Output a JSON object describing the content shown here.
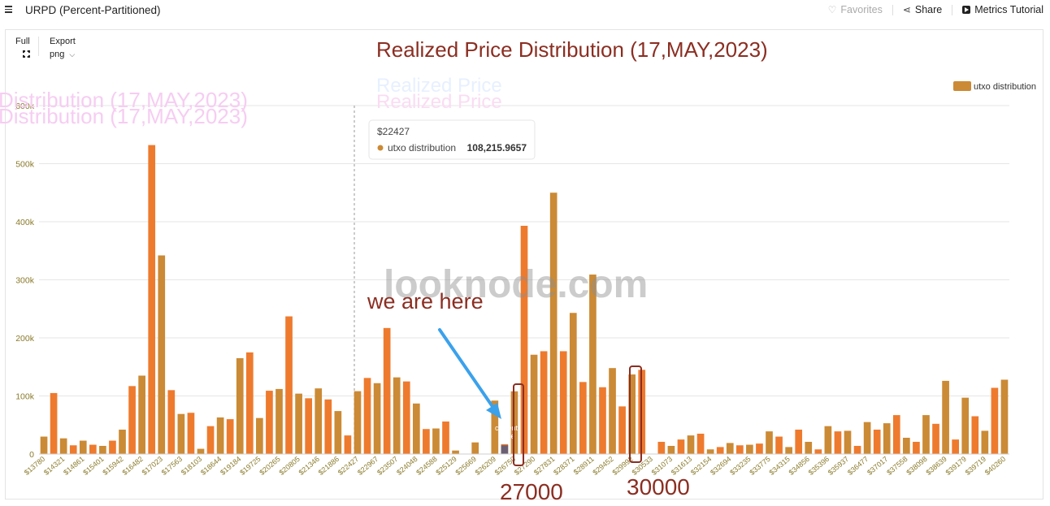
{
  "header": {
    "title": "URPD (Percent-Partitioned)",
    "favorites": "Favorites",
    "share": "Share",
    "tutorial": "Metrics Tutorial"
  },
  "toolbar": {
    "full_label": "Full",
    "export_label": "Export",
    "export_format": "png"
  },
  "annotations": {
    "main_title": "Realized Price Distribution (17,MAY,2023)",
    "ghost_title_left_1": "Distribution (17,MAY,2023)",
    "ghost_title_left_2": "Distribution (17,MAY,2023)",
    "ghost_title_mid_1": "Realized Price",
    "ghost_title_mid_2": "Realized Price",
    "we_are_here": "we are here",
    "current_price_1": "current",
    "current_price_2": "price",
    "label_27000": "27000",
    "label_30000": "30000",
    "watermark": "looknode.com"
  },
  "tooltip": {
    "category": "$22427",
    "series": "utxo distribution",
    "value": "108,215.9657"
  },
  "colors": {
    "bar_a": "#CB8A35",
    "bar_b": "#EE7A2E",
    "current_bar": "#6B6073",
    "annotation_red": "#8B2E22",
    "arrow": "#3BA1EB",
    "grid": "#E6E6E6",
    "axis_text": "#8A7A2A"
  },
  "chart_data": {
    "type": "bar",
    "title": "",
    "xlabel": "",
    "ylabel": "",
    "ylim": [
      0,
      600000
    ],
    "y_ticks": [
      "0",
      "100k",
      "200k",
      "300k",
      "400k",
      "500k",
      "600k"
    ],
    "grid": true,
    "legend_position": "top-right",
    "x_tick_labels": [
      "$13780",
      "$14321",
      "$14861",
      "$15401",
      "$15942",
      "$16482",
      "$17023",
      "$17563",
      "$18103",
      "$18644",
      "$19184",
      "$19725",
      "$20265",
      "$20805",
      "$21346",
      "$21886",
      "$22427",
      "$22967",
      "$23507",
      "$24048",
      "$24588",
      "$25129",
      "$25669",
      "$26209",
      "$26750",
      "$27290",
      "$27831",
      "$28371",
      "$28911",
      "$29452",
      "$29992",
      "$30533",
      "$31073",
      "$31613",
      "$32154",
      "$32694",
      "$33235",
      "$33775",
      "$34315",
      "$34856",
      "$35396",
      "$35937",
      "$36477",
      "$37017",
      "$37558",
      "$38098",
      "$38639",
      "$39179",
      "$39719",
      "$40260"
    ],
    "series": [
      {
        "name": "utxo distribution",
        "values": [
          30000,
          105000,
          27000,
          15000,
          23000,
          16000,
          14000,
          23000,
          42000,
          117000,
          135000,
          532000,
          342000,
          110000,
          69000,
          71000,
          9000,
          48000,
          63000,
          60000,
          165000,
          175000,
          62000,
          109000,
          112000,
          237000,
          104000,
          96000,
          113000,
          94000,
          74000,
          32000,
          108216,
          131000,
          122000,
          217000,
          132000,
          125000,
          87000,
          43000,
          44000,
          56000,
          6000,
          0,
          20000,
          0,
          92000,
          17000,
          108000,
          393000,
          171000,
          177000,
          450000,
          177000,
          243000,
          124000,
          309000,
          115000,
          148000,
          82000,
          137000,
          145000,
          0,
          21000,
          14000,
          25000,
          32000,
          35000,
          8000,
          12000,
          19000,
          15000,
          16000,
          18000,
          39000,
          30000,
          12000,
          42000,
          21000,
          8000,
          48000,
          39000,
          40000,
          14000,
          55000,
          42000,
          53000,
          67000,
          28000,
          21000,
          67000,
          52000,
          126000,
          25000,
          97000,
          65000,
          40000,
          114000,
          128000
        ]
      }
    ],
    "current_price_bar_value": 15000
  }
}
